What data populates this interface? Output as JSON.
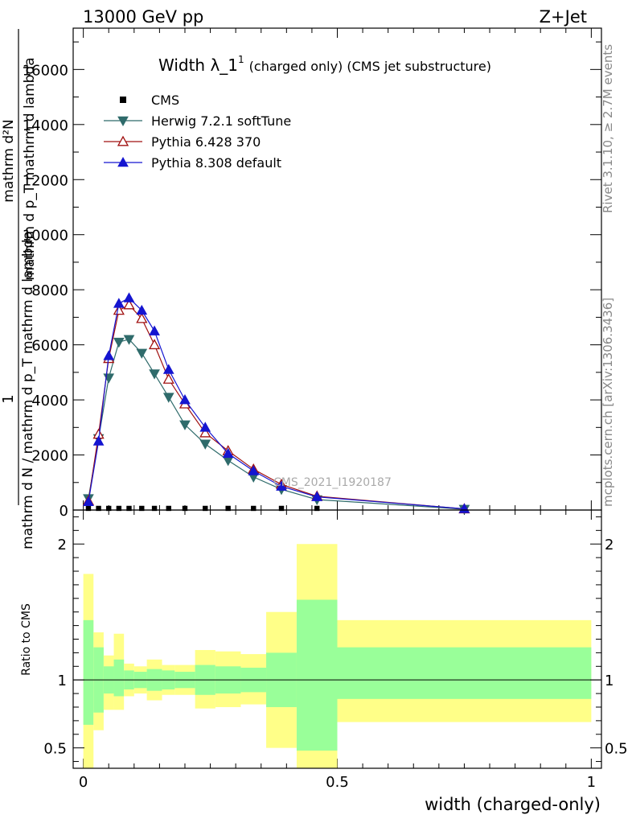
{
  "header": {
    "left": "13000 GeV pp",
    "right": "Z+Jet"
  },
  "side": {
    "rivet": "Rivet 3.1.10, ≥ 2.7M events",
    "mcplots": "mcplots.cern.ch [arXiv:1306.3436]"
  },
  "chart_data": {
    "type": "line",
    "title_main": "Width λ_1",
    "title_sup": "1",
    "title_rest": "(charged only) (CMS jet substructure)",
    "watermark": "CMS_2021_I1920187",
    "ylabel_num": "1",
    "ylabel_den": "mathrm d N / mathrm d p_T mathrm d lambda",
    "ylabel_over": "mathrm d²N",
    "ylabel_under": "mathrm d p_T mathrm d lambda",
    "ratio_ylabel": "Ratio to CMS",
    "xlabel": "width (charged-only)",
    "xlim": [
      -0.02,
      1.02
    ],
    "ylim": [
      0,
      17500
    ],
    "ratio_ylim": [
      0.35,
      2.25
    ],
    "x_ticks": [
      {
        "value": 0,
        "label": "0"
      },
      {
        "value": 0.5,
        "label": "0.5"
      },
      {
        "value": 1,
        "label": "1"
      }
    ],
    "y_ticks": [
      {
        "value": 0,
        "label": "0"
      },
      {
        "value": 2000,
        "label": "2000"
      },
      {
        "value": 4000,
        "label": "4000"
      },
      {
        "value": 6000,
        "label": "6000"
      },
      {
        "value": 8000,
        "label": "8000"
      },
      {
        "value": 10000,
        "label": "10000"
      },
      {
        "value": 12000,
        "label": "12000"
      },
      {
        "value": 14000,
        "label": "14000"
      },
      {
        "value": 16000,
        "label": "16000"
      }
    ],
    "ratio_ticks": [
      {
        "value": 0.5,
        "label": "0.5"
      },
      {
        "value": 1,
        "label": "1"
      },
      {
        "value": 2,
        "label": "2"
      }
    ],
    "x": [
      0.01,
      0.03,
      0.05,
      0.07,
      0.09,
      0.115,
      0.14,
      0.168,
      0.2,
      0.24,
      0.285,
      0.335,
      0.39,
      0.46,
      0.75
    ],
    "series": [
      {
        "name": "CMS",
        "color": "#000000",
        "marker": "square",
        "values": [
          60,
          60,
          60,
          60,
          60,
          60,
          60,
          60,
          60,
          60,
          60,
          60,
          60,
          60,
          0
        ]
      },
      {
        "name": "Herwig 7.2.1 softTune",
        "color": "#2f6b6b",
        "marker": "triangle-down",
        "values": [
          420,
          2600,
          4800,
          6100,
          6200,
          5700,
          4950,
          4100,
          3100,
          2400,
          1800,
          1200,
          750,
          380,
          30
        ]
      },
      {
        "name": "Pythia 6.428 370",
        "color": "#a01010",
        "marker": "triangle-up-open",
        "values": [
          330,
          2750,
          5500,
          7250,
          7450,
          6950,
          6000,
          4750,
          3850,
          2800,
          2150,
          1480,
          930,
          500,
          40
        ]
      },
      {
        "name": "Pythia 8.308 default",
        "color": "#1515d0",
        "marker": "triangle-up",
        "values": [
          300,
          2500,
          5600,
          7500,
          7700,
          7250,
          6500,
          5100,
          4000,
          3000,
          2050,
          1420,
          860,
          480,
          45
        ]
      }
    ],
    "ratio_bands": [
      {
        "x0": 0.0,
        "x1": 0.02,
        "y_lo": 0.33,
        "y_hi": 1.78,
        "g_lo": 0.67,
        "g_hi": 1.44
      },
      {
        "x0": 0.02,
        "x1": 0.04,
        "y_lo": 0.63,
        "y_hi": 1.35,
        "g_lo": 0.76,
        "g_hi": 1.24
      },
      {
        "x0": 0.04,
        "x1": 0.06,
        "y_lo": 0.78,
        "y_hi": 1.18,
        "g_lo": 0.9,
        "g_hi": 1.1
      },
      {
        "x0": 0.06,
        "x1": 0.08,
        "y_lo": 0.78,
        "y_hi": 1.34,
        "g_lo": 0.88,
        "g_hi": 1.15
      },
      {
        "x0": 0.08,
        "x1": 0.1,
        "y_lo": 0.88,
        "y_hi": 1.12,
        "g_lo": 0.93,
        "g_hi": 1.07
      },
      {
        "x0": 0.1,
        "x1": 0.125,
        "y_lo": 0.9,
        "y_hi": 1.1,
        "g_lo": 0.94,
        "g_hi": 1.06
      },
      {
        "x0": 0.125,
        "x1": 0.155,
        "y_lo": 0.85,
        "y_hi": 1.15,
        "g_lo": 0.92,
        "g_hi": 1.08
      },
      {
        "x0": 0.155,
        "x1": 0.18,
        "y_lo": 0.89,
        "y_hi": 1.11,
        "g_lo": 0.93,
        "g_hi": 1.07
      },
      {
        "x0": 0.18,
        "x1": 0.22,
        "y_lo": 0.89,
        "y_hi": 1.11,
        "g_lo": 0.94,
        "g_hi": 1.06
      },
      {
        "x0": 0.22,
        "x1": 0.26,
        "y_lo": 0.79,
        "y_hi": 1.22,
        "g_lo": 0.89,
        "g_hi": 1.11
      },
      {
        "x0": 0.26,
        "x1": 0.31,
        "y_lo": 0.8,
        "y_hi": 1.21,
        "g_lo": 0.9,
        "g_hi": 1.1
      },
      {
        "x0": 0.31,
        "x1": 0.36,
        "y_lo": 0.82,
        "y_hi": 1.19,
        "g_lo": 0.91,
        "g_hi": 1.09
      },
      {
        "x0": 0.36,
        "x1": 0.42,
        "y_lo": 0.5,
        "y_hi": 1.5,
        "g_lo": 0.8,
        "g_hi": 1.2
      },
      {
        "x0": 0.42,
        "x1": 0.5,
        "y_lo": 0.35,
        "y_hi": 2.0,
        "g_lo": 0.48,
        "g_hi": 1.59
      },
      {
        "x0": 0.5,
        "x1": 1.0,
        "y_lo": 0.69,
        "y_hi": 1.44,
        "g_lo": 0.86,
        "g_hi": 1.24
      }
    ],
    "band_colors": {
      "outer": "#ffff88",
      "inner": "#99ff99"
    }
  }
}
